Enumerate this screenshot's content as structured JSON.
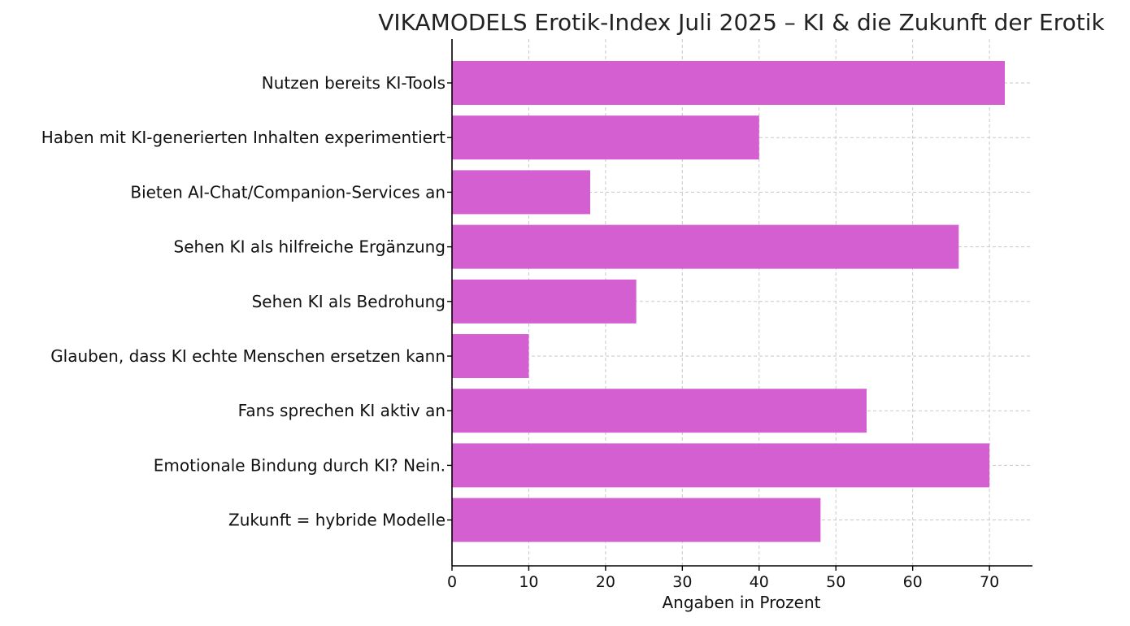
{
  "chart_data": {
    "type": "bar",
    "orientation": "horizontal",
    "title": "VIKAMODELS Erotik-Index Juli 2025 – KI & die Zukunft der Erotik",
    "xlabel": "Angaben in Prozent",
    "ylabel": "",
    "xlim": [
      0,
      75.6
    ],
    "xticks": [
      0,
      10,
      20,
      30,
      40,
      50,
      60,
      70
    ],
    "grid": true,
    "bar_color": "#d35fd1",
    "categories": [
      "Nutzen bereits KI-Tools",
      "Haben mit KI-generierten Inhalten experimentiert",
      "Bieten AI-Chat/Companion-Services an",
      "Sehen KI als hilfreiche Ergänzung",
      "Sehen KI als Bedrohung",
      "Glauben, dass KI echte Menschen ersetzen kann",
      "Fans sprechen KI aktiv an",
      "Emotionale Bindung durch KI? Nein.",
      "Zukunft = hybride Modelle"
    ],
    "values": [
      72,
      40,
      18,
      66,
      24,
      10,
      54,
      70,
      48
    ]
  }
}
